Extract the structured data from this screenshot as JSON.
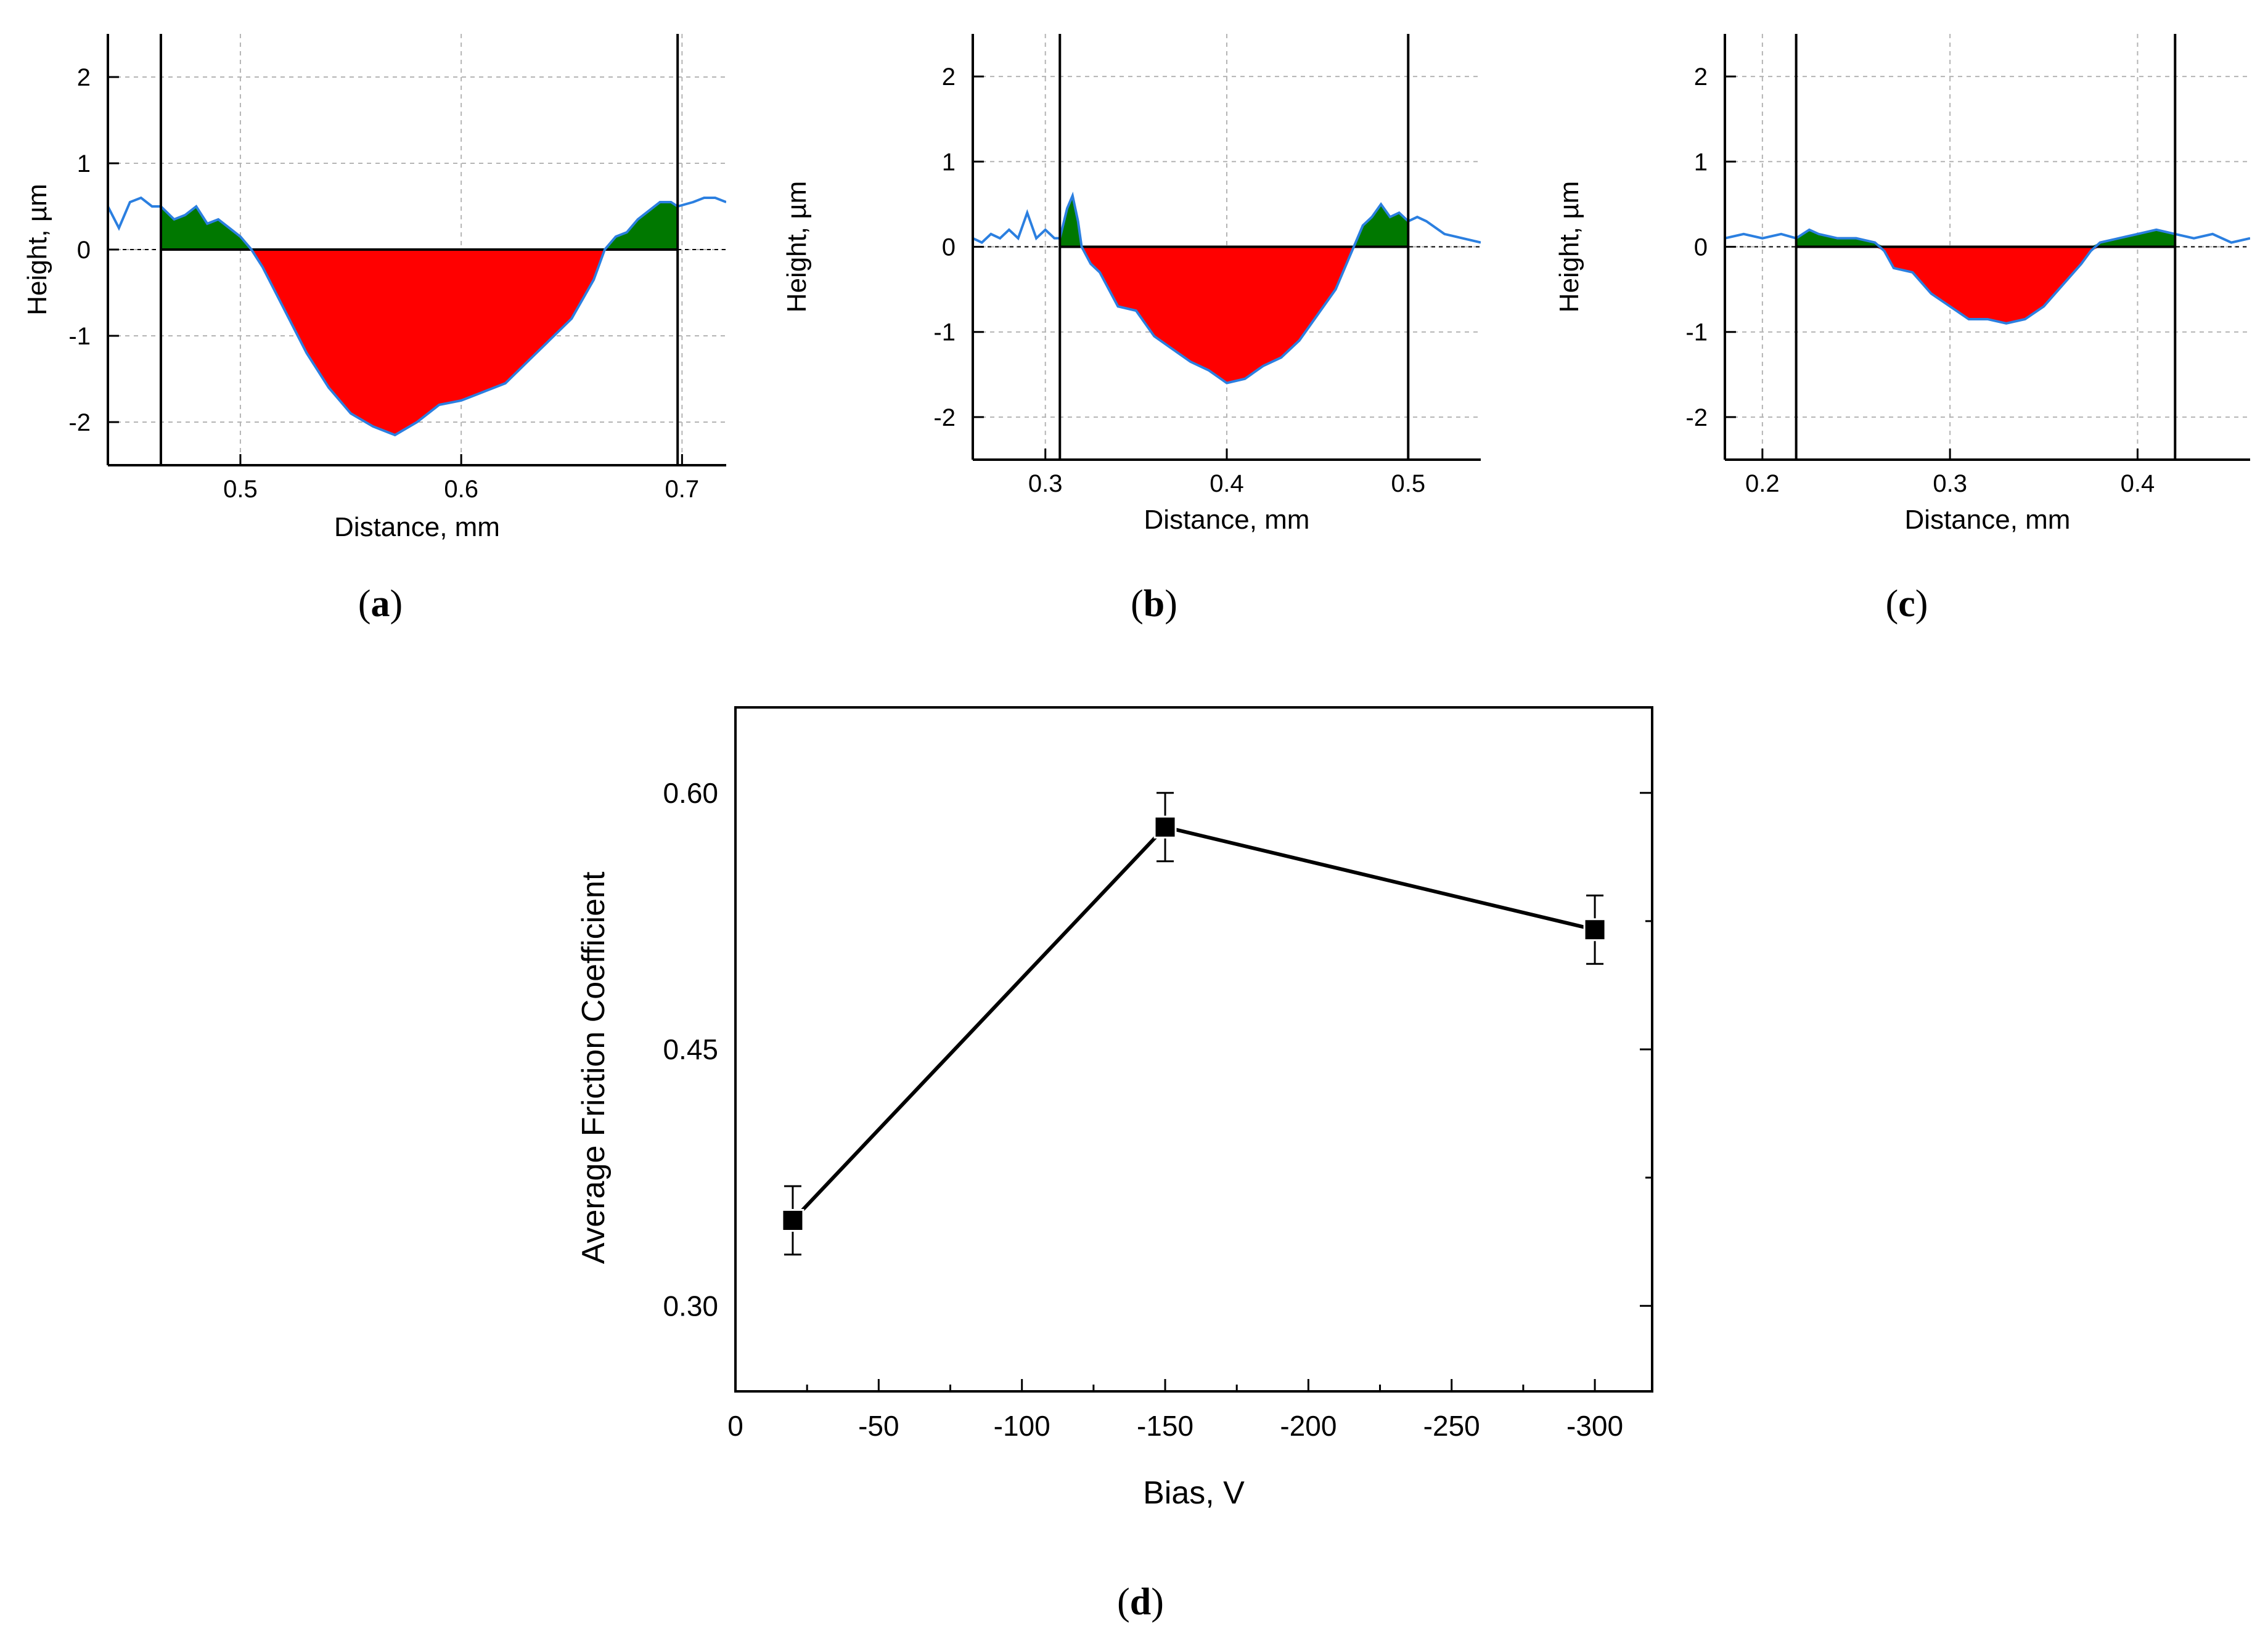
{
  "figure_title": "",
  "chart_data": [
    {
      "type": "area",
      "panel_label": "a",
      "xlabel": "Distance, mm",
      "ylabel": "Height, µm",
      "xlim": [
        0.44,
        0.72
      ],
      "ylim": [
        -2.5,
        2.5
      ],
      "xticks": [
        0.5,
        0.6,
        0.7
      ],
      "xtick_labels": [
        "0.5",
        "0.6",
        "0.7"
      ],
      "yticks": [
        -2,
        -1,
        0,
        1,
        2
      ],
      "ytick_labels": [
        "-2",
        "-1",
        "0",
        "1",
        "2"
      ],
      "grid": true,
      "markers": [
        0.464,
        0.698
      ],
      "series": [
        {
          "name": "profile",
          "x": [
            0.44,
            0.445,
            0.45,
            0.455,
            0.46,
            0.464,
            0.47,
            0.475,
            0.48,
            0.485,
            0.49,
            0.495,
            0.5,
            0.505,
            0.51,
            0.52,
            0.53,
            0.54,
            0.55,
            0.56,
            0.57,
            0.58,
            0.59,
            0.6,
            0.61,
            0.62,
            0.63,
            0.64,
            0.65,
            0.66,
            0.665,
            0.67,
            0.675,
            0.68,
            0.685,
            0.69,
            0.695,
            0.698,
            0.705,
            0.71,
            0.715,
            0.72
          ],
          "y": [
            0.5,
            0.25,
            0.55,
            0.6,
            0.5,
            0.5,
            0.35,
            0.4,
            0.5,
            0.3,
            0.35,
            0.25,
            0.15,
            0.0,
            -0.2,
            -0.7,
            -1.2,
            -1.6,
            -1.9,
            -2.05,
            -2.15,
            -2.0,
            -1.8,
            -1.75,
            -1.65,
            -1.55,
            -1.3,
            -1.05,
            -0.8,
            -0.35,
            0.0,
            0.15,
            0.2,
            0.35,
            0.45,
            0.55,
            0.55,
            0.5,
            0.55,
            0.6,
            0.6,
            0.55
          ]
        }
      ]
    },
    {
      "type": "area",
      "panel_label": "b",
      "xlabel": "Distance, mm",
      "ylabel": "Height, µm",
      "xlim": [
        0.26,
        0.54
      ],
      "ylim": [
        -2.5,
        2.5
      ],
      "xticks": [
        0.3,
        0.4,
        0.5
      ],
      "xtick_labels": [
        "0.3",
        "0.4",
        "0.5"
      ],
      "yticks": [
        -2,
        -1,
        0,
        1,
        2
      ],
      "ytick_labels": [
        "-2",
        "-1",
        "0",
        "1",
        "2"
      ],
      "grid": true,
      "markers": [
        0.308,
        0.5
      ],
      "series": [
        {
          "name": "profile",
          "x": [
            0.26,
            0.265,
            0.27,
            0.275,
            0.28,
            0.285,
            0.29,
            0.295,
            0.3,
            0.305,
            0.308,
            0.312,
            0.315,
            0.318,
            0.32,
            0.325,
            0.33,
            0.34,
            0.35,
            0.36,
            0.37,
            0.38,
            0.39,
            0.4,
            0.41,
            0.42,
            0.43,
            0.44,
            0.45,
            0.46,
            0.47,
            0.475,
            0.48,
            0.485,
            0.49,
            0.495,
            0.5,
            0.505,
            0.51,
            0.52,
            0.53,
            0.54
          ],
          "y": [
            0.1,
            0.05,
            0.15,
            0.1,
            0.2,
            0.1,
            0.4,
            0.1,
            0.2,
            0.1,
            0.1,
            0.45,
            0.6,
            0.3,
            0.0,
            -0.2,
            -0.3,
            -0.7,
            -0.75,
            -1.05,
            -1.2,
            -1.35,
            -1.45,
            -1.6,
            -1.55,
            -1.4,
            -1.3,
            -1.1,
            -0.8,
            -0.5,
            0.0,
            0.25,
            0.35,
            0.5,
            0.35,
            0.4,
            0.3,
            0.35,
            0.3,
            0.15,
            0.1,
            0.05
          ]
        }
      ]
    },
    {
      "type": "area",
      "panel_label": "c",
      "xlabel": "Distance, mm",
      "ylabel": "Height, µm",
      "xlim": [
        0.18,
        0.46
      ],
      "ylim": [
        -2.5,
        2.5
      ],
      "xticks": [
        0.2,
        0.3,
        0.4
      ],
      "xtick_labels": [
        "0.2",
        "0.3",
        "0.4"
      ],
      "yticks": [
        -2,
        -1,
        0,
        1,
        2
      ],
      "ytick_labels": [
        "-2",
        "-1",
        "0",
        "1",
        "2"
      ],
      "grid": true,
      "markers": [
        0.218,
        0.42
      ],
      "series": [
        {
          "name": "profile",
          "x": [
            0.18,
            0.19,
            0.2,
            0.21,
            0.218,
            0.225,
            0.23,
            0.24,
            0.25,
            0.26,
            0.265,
            0.27,
            0.28,
            0.29,
            0.3,
            0.31,
            0.32,
            0.33,
            0.34,
            0.35,
            0.36,
            0.37,
            0.375,
            0.38,
            0.39,
            0.4,
            0.41,
            0.42,
            0.43,
            0.44,
            0.45,
            0.46
          ],
          "y": [
            0.1,
            0.15,
            0.1,
            0.15,
            0.1,
            0.2,
            0.15,
            0.1,
            0.1,
            0.05,
            -0.05,
            -0.25,
            -0.3,
            -0.55,
            -0.7,
            -0.85,
            -0.85,
            -0.9,
            -0.85,
            -0.7,
            -0.45,
            -0.2,
            -0.05,
            0.05,
            0.1,
            0.15,
            0.2,
            0.15,
            0.1,
            0.15,
            0.05,
            0.1
          ]
        }
      ]
    },
    {
      "type": "line",
      "panel_label": "d",
      "xlabel": "Bias, V",
      "ylabel": "Average Friction Coefficient",
      "xlim": [
        0,
        -320
      ],
      "ylim": [
        0.25,
        0.65
      ],
      "xticks": [
        0,
        -50,
        -100,
        -150,
        -200,
        -250,
        -300
      ],
      "xtick_labels": [
        "0",
        "-50",
        "-100",
        "-150",
        "-200",
        "-250",
        "-300"
      ],
      "yticks": [
        0.3,
        0.45,
        0.6
      ],
      "ytick_labels": [
        "0.30",
        "0.45",
        "0.60"
      ],
      "grid": false,
      "series": [
        {
          "name": "friction",
          "x": [
            -20,
            -150,
            -300
          ],
          "y": [
            0.35,
            0.58,
            0.52
          ],
          "error": [
            0.02,
            0.02,
            0.02
          ]
        }
      ]
    }
  ],
  "colors": {
    "profile_line": "#2b7fe0",
    "material_above": "#007800",
    "wear_below": "#ff0000",
    "axis": "#000000",
    "grid": "#b4b4b4"
  }
}
